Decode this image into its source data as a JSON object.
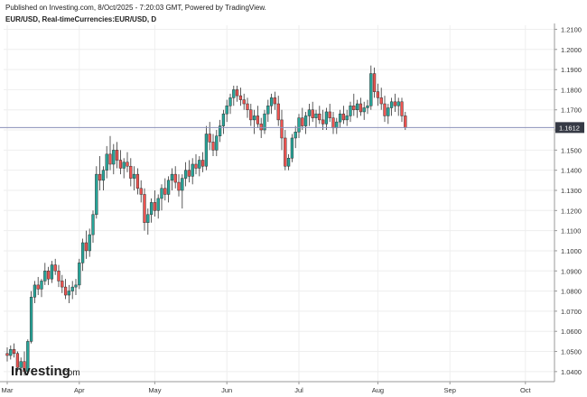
{
  "header": {
    "published": "Published on Investing.com, 8/Oct/2025 - 7:20:03 GMT, Powered by TradingView.",
    "title": "EUR/USD, Real-timeCurrencies:EUR/USD, D"
  },
  "watermark": {
    "brand": "Investing",
    "suffix": ".com"
  },
  "colors": {
    "up": "#26a69a",
    "down": "#ef5350",
    "grid": "#eeeeee",
    "price_line": "#8a90b8",
    "price_tag": "#363a45",
    "text": "#333333"
  },
  "chart_data": {
    "type": "candlestick",
    "symbol": "EUR/USD",
    "interval": "D",
    "y_ticks": [
      "1.2100",
      "1.2000",
      "1.1900",
      "1.1800",
      "1.1700",
      "1.1600",
      "1.1500",
      "1.1400",
      "1.1300",
      "1.1200",
      "1.1100",
      "1.1000",
      "1.0900",
      "1.0800",
      "1.0700",
      "1.0600",
      "1.0500",
      "1.0400"
    ],
    "ylim": [
      1.035,
      1.212
    ],
    "x_ticks": [
      {
        "label": "Mar",
        "bar": 0
      },
      {
        "label": "Apr",
        "bar": 21
      },
      {
        "label": "May",
        "bar": 43
      },
      {
        "label": "Jun",
        "bar": 64
      },
      {
        "label": "Jul",
        "bar": 85
      },
      {
        "label": "Aug",
        "bar": 108
      },
      {
        "label": "Sep",
        "bar": 129
      },
      {
        "label": "Oct",
        "bar": 151
      }
    ],
    "last_price": 1.1612,
    "last_price_label": "1.1612",
    "ohlc": [
      [
        1.049,
        1.052,
        1.045,
        1.048
      ],
      [
        1.048,
        1.053,
        1.046,
        1.051
      ],
      [
        1.051,
        1.054,
        1.047,
        1.049
      ],
      [
        1.049,
        1.05,
        1.04,
        1.042
      ],
      [
        1.042,
        1.047,
        1.038,
        1.045
      ],
      [
        1.045,
        1.05,
        1.038,
        1.04
      ],
      [
        1.04,
        1.056,
        1.039,
        1.055
      ],
      [
        1.055,
        1.08,
        1.054,
        1.077
      ],
      [
        1.077,
        1.085,
        1.074,
        1.083
      ],
      [
        1.083,
        1.087,
        1.078,
        1.081
      ],
      [
        1.081,
        1.086,
        1.077,
        1.085
      ],
      [
        1.085,
        1.094,
        1.083,
        1.09
      ],
      [
        1.09,
        1.092,
        1.083,
        1.086
      ],
      [
        1.086,
        1.095,
        1.084,
        1.093
      ],
      [
        1.093,
        1.096,
        1.088,
        1.09
      ],
      [
        1.09,
        1.093,
        1.082,
        1.085
      ],
      [
        1.085,
        1.088,
        1.079,
        1.082
      ],
      [
        1.082,
        1.086,
        1.076,
        1.078
      ],
      [
        1.078,
        1.083,
        1.074,
        1.08
      ],
      [
        1.08,
        1.085,
        1.076,
        1.082
      ],
      [
        1.082,
        1.086,
        1.078,
        1.083
      ],
      [
        1.083,
        1.096,
        1.081,
        1.094
      ],
      [
        1.094,
        1.106,
        1.09,
        1.104
      ],
      [
        1.104,
        1.11,
        1.096,
        1.1
      ],
      [
        1.1,
        1.111,
        1.097,
        1.108
      ],
      [
        1.108,
        1.12,
        1.104,
        1.118
      ],
      [
        1.118,
        1.142,
        1.116,
        1.138
      ],
      [
        1.138,
        1.147,
        1.13,
        1.135
      ],
      [
        1.135,
        1.142,
        1.13,
        1.14
      ],
      [
        1.14,
        1.152,
        1.136,
        1.148
      ],
      [
        1.148,
        1.157,
        1.14,
        1.143
      ],
      [
        1.143,
        1.153,
        1.138,
        1.15
      ],
      [
        1.15,
        1.154,
        1.141,
        1.145
      ],
      [
        1.145,
        1.15,
        1.138,
        1.141
      ],
      [
        1.141,
        1.146,
        1.136,
        1.144
      ],
      [
        1.144,
        1.149,
        1.139,
        1.142
      ],
      [
        1.142,
        1.146,
        1.132,
        1.136
      ],
      [
        1.136,
        1.142,
        1.13,
        1.138
      ],
      [
        1.138,
        1.141,
        1.128,
        1.131
      ],
      [
        1.131,
        1.135,
        1.124,
        1.128
      ],
      [
        1.128,
        1.131,
        1.11,
        1.114
      ],
      [
        1.114,
        1.121,
        1.108,
        1.118
      ],
      [
        1.118,
        1.126,
        1.114,
        1.124
      ],
      [
        1.124,
        1.13,
        1.117,
        1.12
      ],
      [
        1.12,
        1.128,
        1.116,
        1.126
      ],
      [
        1.126,
        1.133,
        1.12,
        1.131
      ],
      [
        1.131,
        1.136,
        1.125,
        1.128
      ],
      [
        1.128,
        1.137,
        1.124,
        1.135
      ],
      [
        1.135,
        1.141,
        1.13,
        1.138
      ],
      [
        1.138,
        1.142,
        1.131,
        1.134
      ],
      [
        1.134,
        1.138,
        1.127,
        1.13
      ],
      [
        1.13,
        1.138,
        1.121,
        1.136
      ],
      [
        1.136,
        1.144,
        1.132,
        1.14
      ],
      [
        1.14,
        1.145,
        1.134,
        1.137
      ],
      [
        1.137,
        1.146,
        1.133,
        1.143
      ],
      [
        1.143,
        1.148,
        1.138,
        1.141
      ],
      [
        1.141,
        1.147,
        1.137,
        1.145
      ],
      [
        1.145,
        1.149,
        1.139,
        1.142
      ],
      [
        1.142,
        1.162,
        1.14,
        1.158
      ],
      [
        1.158,
        1.164,
        1.15,
        1.154
      ],
      [
        1.154,
        1.158,
        1.147,
        1.15
      ],
      [
        1.15,
        1.16,
        1.147,
        1.157
      ],
      [
        1.157,
        1.165,
        1.154,
        1.162
      ],
      [
        1.162,
        1.17,
        1.158,
        1.168
      ],
      [
        1.168,
        1.175,
        1.164,
        1.172
      ],
      [
        1.172,
        1.178,
        1.168,
        1.176
      ],
      [
        1.176,
        1.182,
        1.172,
        1.18
      ],
      [
        1.18,
        1.182,
        1.174,
        1.177
      ],
      [
        1.177,
        1.181,
        1.172,
        1.175
      ],
      [
        1.175,
        1.178,
        1.17,
        1.173
      ],
      [
        1.173,
        1.176,
        1.166,
        1.17
      ],
      [
        1.17,
        1.173,
        1.162,
        1.165
      ],
      [
        1.165,
        1.17,
        1.158,
        1.167
      ],
      [
        1.167,
        1.172,
        1.161,
        1.163
      ],
      [
        1.163,
        1.166,
        1.156,
        1.16
      ],
      [
        1.16,
        1.17,
        1.158,
        1.168
      ],
      [
        1.168,
        1.175,
        1.164,
        1.172
      ],
      [
        1.172,
        1.178,
        1.168,
        1.176
      ],
      [
        1.176,
        1.179,
        1.17,
        1.173
      ],
      [
        1.173,
        1.177,
        1.162,
        1.165
      ],
      [
        1.165,
        1.17,
        1.15,
        1.156
      ],
      [
        1.156,
        1.16,
        1.14,
        1.142
      ],
      [
        1.142,
        1.148,
        1.14,
        1.146
      ],
      [
        1.146,
        1.158,
        1.144,
        1.156
      ],
      [
        1.156,
        1.162,
        1.151,
        1.159
      ],
      [
        1.159,
        1.168,
        1.156,
        1.166
      ],
      [
        1.166,
        1.171,
        1.16,
        1.162
      ],
      [
        1.162,
        1.169,
        1.158,
        1.167
      ],
      [
        1.167,
        1.173,
        1.162,
        1.17
      ],
      [
        1.17,
        1.174,
        1.164,
        1.166
      ],
      [
        1.166,
        1.17,
        1.161,
        1.168
      ],
      [
        1.168,
        1.172,
        1.163,
        1.165
      ],
      [
        1.165,
        1.17,
        1.16,
        1.163
      ],
      [
        1.163,
        1.171,
        1.16,
        1.169
      ],
      [
        1.169,
        1.173,
        1.164,
        1.166
      ],
      [
        1.166,
        1.169,
        1.158,
        1.161
      ],
      [
        1.161,
        1.166,
        1.158,
        1.164
      ],
      [
        1.164,
        1.17,
        1.161,
        1.168
      ],
      [
        1.168,
        1.172,
        1.163,
        1.165
      ],
      [
        1.165,
        1.17,
        1.162,
        1.167
      ],
      [
        1.167,
        1.174,
        1.164,
        1.172
      ],
      [
        1.172,
        1.178,
        1.167,
        1.17
      ],
      [
        1.17,
        1.175,
        1.166,
        1.173
      ],
      [
        1.173,
        1.176,
        1.167,
        1.169
      ],
      [
        1.169,
        1.174,
        1.165,
        1.171
      ],
      [
        1.171,
        1.175,
        1.168,
        1.172
      ],
      [
        1.172,
        1.192,
        1.17,
        1.188
      ],
      [
        1.188,
        1.191,
        1.176,
        1.179
      ],
      [
        1.179,
        1.183,
        1.172,
        1.176
      ],
      [
        1.176,
        1.181,
        1.17,
        1.173
      ],
      [
        1.173,
        1.177,
        1.164,
        1.167
      ],
      [
        1.167,
        1.173,
        1.163,
        1.171
      ],
      [
        1.171,
        1.176,
        1.167,
        1.174
      ],
      [
        1.174,
        1.178,
        1.169,
        1.172
      ],
      [
        1.172,
        1.176,
        1.167,
        1.174
      ],
      [
        1.174,
        1.176,
        1.164,
        1.167
      ],
      [
        1.167,
        1.169,
        1.16,
        1.1612
      ]
    ]
  }
}
